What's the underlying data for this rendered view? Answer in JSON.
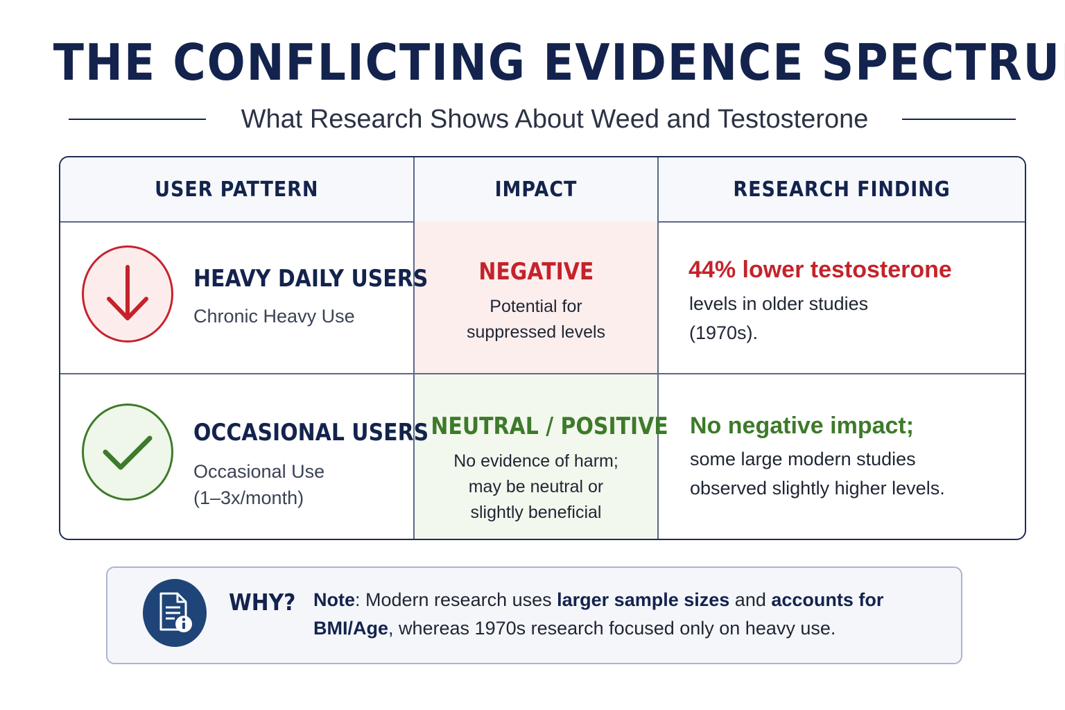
{
  "title": "THE CONFLICTING EVIDENCE SPECTRUM",
  "subtitle": "What Research Shows About Weed and Testosterone",
  "table": {
    "headers": [
      "USER PATTERN",
      "IMPACT",
      "RESEARCH FINDING"
    ],
    "rows": [
      {
        "icon": "down-arrow-icon",
        "accent": "#c4232b",
        "pattern_name": "HEAVY DAILY USERS",
        "pattern_sub": [
          "Chronic Heavy Use"
        ],
        "impact_label": "NEGATIVE",
        "impact_desc": [
          "Potential for",
          "suppressed levels"
        ],
        "finding_head": "44% lower testosterone",
        "finding_body": [
          "levels in older studies",
          "(1970s)."
        ]
      },
      {
        "icon": "checkmark-icon",
        "accent": "#3d7a2a",
        "pattern_name": "OCCASIONAL USERS",
        "pattern_sub": [
          "Occasional Use",
          "(1–3x/month)"
        ],
        "impact_label": "NEUTRAL / POSITIVE",
        "impact_desc": [
          "No evidence of harm;",
          "may be neutral or",
          "slightly beneficial"
        ],
        "finding_head": "No negative impact;",
        "finding_body": [
          "some large modern studies",
          "observed slightly higher levels."
        ]
      }
    ]
  },
  "note": {
    "icon": "document-info-icon",
    "label": "WHY?",
    "prefix": "Note",
    "sep1": ": Modern research uses ",
    "bold1": "larger sample sizes",
    "sep2": " and ",
    "bold2": "accounts for BMI/Age",
    "suffix": ", whereas 1970s research focused only on heavy use."
  }
}
